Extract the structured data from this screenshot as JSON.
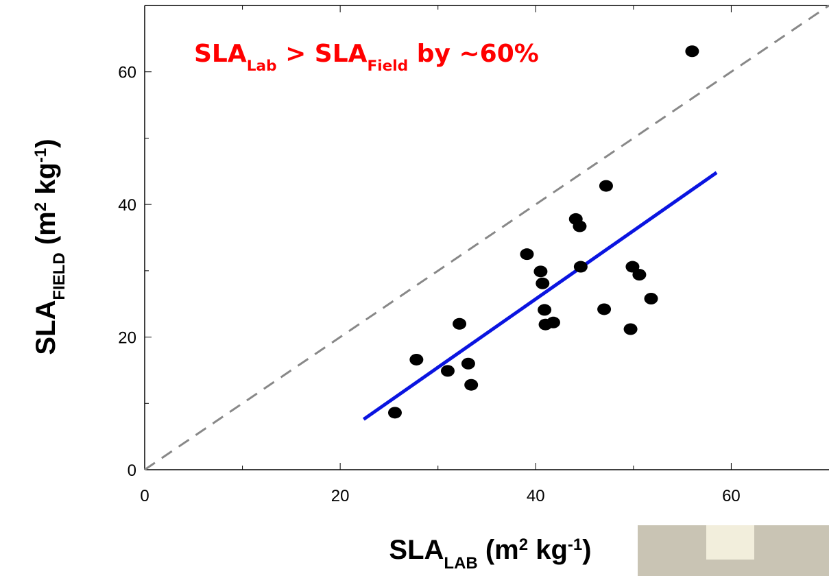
{
  "chart_data": {
    "type": "scatter",
    "annotation": [
      "SLA",
      "Lab",
      " > SLA",
      "Field",
      " by ~60%"
    ],
    "annotation_color": "#ff0000",
    "x_label": [
      "SLA",
      "LAB",
      " (m",
      "2",
      " kg",
      "-1",
      ")"
    ],
    "y_label": [
      "SLA",
      "FIELD",
      " (m",
      "2",
      " kg",
      "-1",
      ")"
    ],
    "xlim": [
      0,
      70
    ],
    "ylim": [
      0,
      70
    ],
    "xticks": [
      0,
      20,
      40,
      60
    ],
    "yticks": [
      0,
      20,
      40,
      60
    ],
    "x_minor_ticks": [
      10,
      30,
      50
    ],
    "y_minor_ticks": [
      10,
      30,
      50
    ],
    "grid": false,
    "series": [
      {
        "color": "#000000",
        "x": [
          25.6,
          27.8,
          31.0,
          32.2,
          33.1,
          33.4,
          39.1,
          40.5,
          40.7,
          40.9,
          41.0,
          41.8,
          44.1,
          44.5,
          44.6,
          47.0,
          47.2,
          49.7,
          49.9,
          50.6,
          51.8,
          56.0
        ],
        "values": [
          8.6,
          16.6,
          14.9,
          22.0,
          16.0,
          12.8,
          32.5,
          29.9,
          28.1,
          24.1,
          21.9,
          22.2,
          37.8,
          36.7,
          30.6,
          24.2,
          42.8,
          21.2,
          30.6,
          29.4,
          25.8,
          63.1
        ]
      }
    ],
    "fit_line": {
      "color": "#0a14e0",
      "x": [
        22.4,
        58.5
      ],
      "values": [
        7.6,
        44.8
      ]
    },
    "reference_line": {
      "color": "#888888",
      "x": [
        0,
        70
      ],
      "values": [
        0,
        70
      ]
    }
  }
}
